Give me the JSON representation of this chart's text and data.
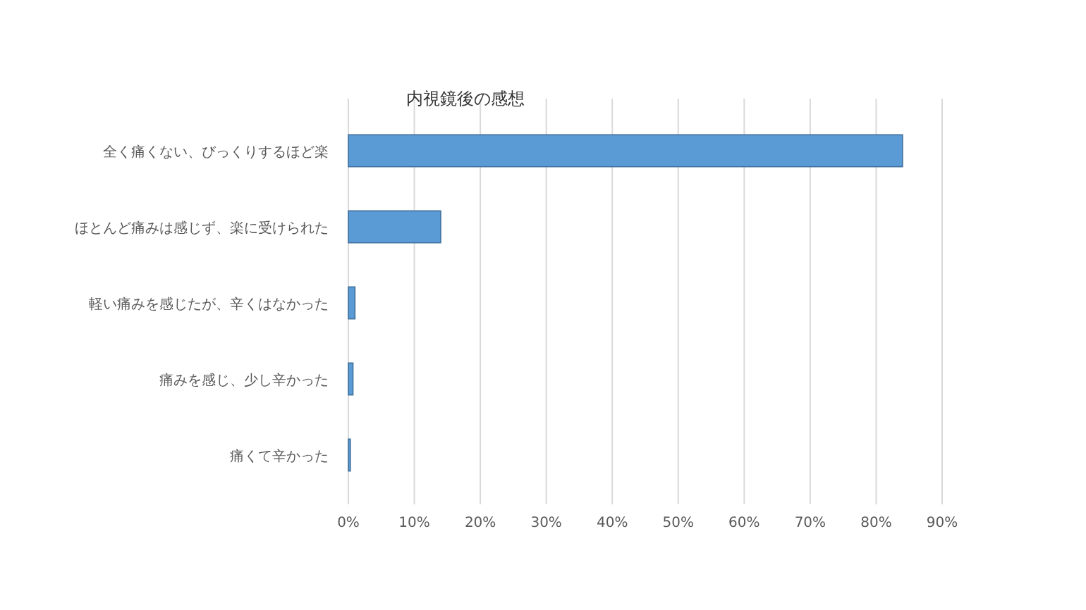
{
  "chart_data": {
    "type": "bar",
    "orientation": "horizontal",
    "title": "内視鏡後の感想",
    "categories": [
      "全く痛くない、びっくりするほど楽",
      "ほとんど痛みは感じず、楽に受けられた",
      "軽い痛みを感じたが、辛くはなかった",
      "痛みを感じ、少し辛かった",
      "痛くて辛かった"
    ],
    "values": [
      84,
      14,
      1,
      0.7,
      0.3
    ],
    "color": "#5b9bd5",
    "xlim": [
      0,
      90
    ],
    "xticks": [
      {
        "value": 0,
        "label": "0%"
      },
      {
        "value": 10,
        "label": "10%"
      },
      {
        "value": 20,
        "label": "20%"
      },
      {
        "value": 30,
        "label": "30%"
      },
      {
        "value": 40,
        "label": "40%"
      },
      {
        "value": 50,
        "label": "50%"
      },
      {
        "value": 60,
        "label": "60%"
      },
      {
        "value": 70,
        "label": "70%"
      },
      {
        "value": 80,
        "label": "80%"
      },
      {
        "value": 90,
        "label": "90%"
      }
    ],
    "grid": "x"
  }
}
